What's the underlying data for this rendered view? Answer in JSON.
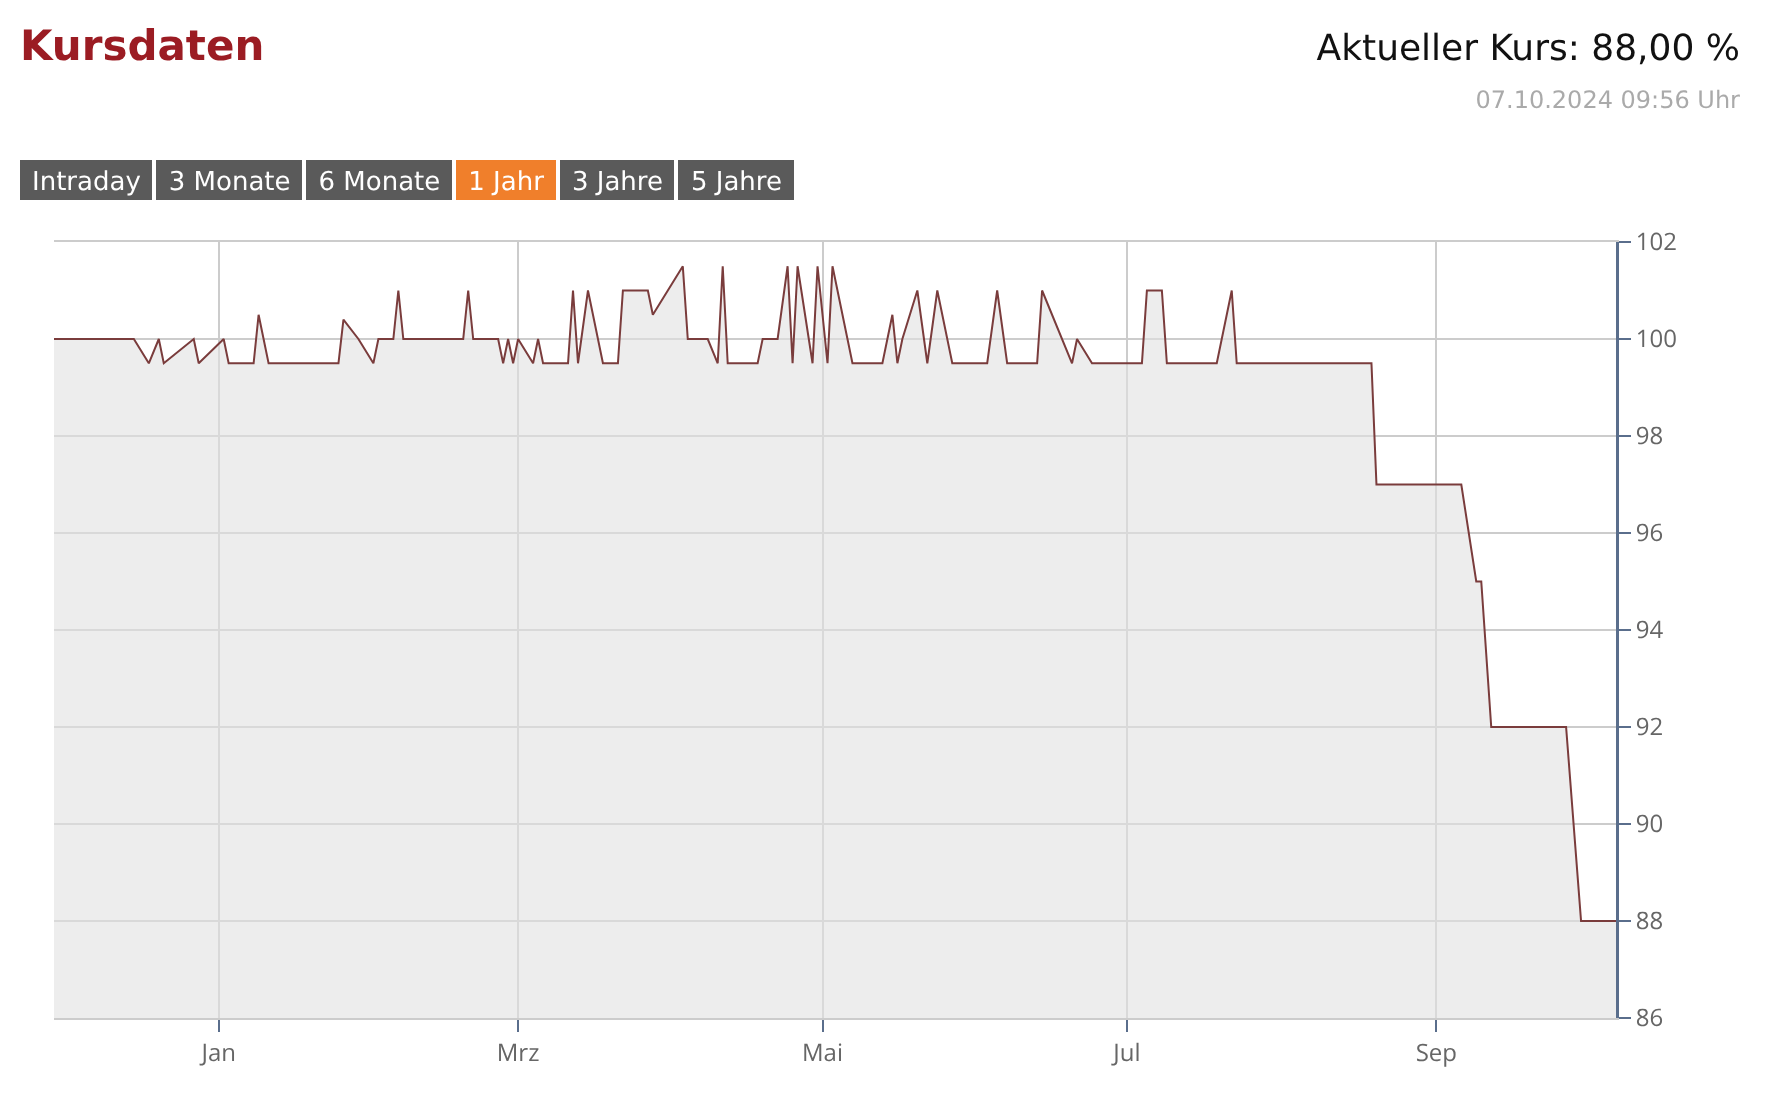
{
  "chart_data": {
    "type": "area",
    "title": "Kursdaten",
    "annotations": [
      "Aktueller Kurs: 88,00 %",
      "07.10.2024 09:56 Uhr",
      "Intraday",
      "3 Monate",
      "6 Monate",
      "1 Jahr",
      "3 Jahre",
      "5 Jahre"
    ],
    "x": [
      "2023-11-29",
      "2023-12-15",
      "2023-12-18",
      "2023-12-20",
      "2023-12-21",
      "2023-12-27",
      "2023-12-28",
      "2024-01-02",
      "2024-01-03",
      "2024-01-08",
      "2024-01-09",
      "2024-01-11",
      "2024-01-25",
      "2024-01-26",
      "2024-01-29",
      "2024-02-01",
      "2024-02-02",
      "2024-02-05",
      "2024-02-06",
      "2024-02-07",
      "2024-02-19",
      "2024-02-20",
      "2024-02-21",
      "2024-02-26",
      "2024-02-27",
      "2024-02-28",
      "2024-02-29",
      "2024-03-01",
      "2024-03-04",
      "2024-03-05",
      "2024-03-06",
      "2024-03-11",
      "2024-03-12",
      "2024-03-13",
      "2024-03-15",
      "2024-03-18",
      "2024-03-21",
      "2024-03-22",
      "2024-03-27",
      "2024-03-28",
      "2024-04-03",
      "2024-04-04",
      "2024-04-08",
      "2024-04-10",
      "2024-04-11",
      "2024-04-12",
      "2024-04-18",
      "2024-04-19",
      "2024-04-22",
      "2024-04-24",
      "2024-04-25",
      "2024-04-26",
      "2024-04-29",
      "2024-04-30",
      "2024-05-02",
      "2024-05-03",
      "2024-05-06",
      "2024-05-07",
      "2024-05-13",
      "2024-05-15",
      "2024-05-16",
      "2024-05-17",
      "2024-05-20",
      "2024-05-22",
      "2024-05-24",
      "2024-05-27",
      "2024-06-03",
      "2024-06-05",
      "2024-06-07",
      "2024-06-13",
      "2024-06-14",
      "2024-06-20",
      "2024-06-21",
      "2024-06-24",
      "2024-07-04",
      "2024-07-05",
      "2024-07-08",
      "2024-07-09",
      "2024-07-19",
      "2024-07-22",
      "2024-07-23",
      "2024-08-19",
      "2024-08-20",
      "2024-09-06",
      "2024-09-09",
      "2024-09-10",
      "2024-09-12",
      "2024-09-27",
      "2024-09-30",
      "2024-10-07"
    ],
    "series": [
      {
        "color": "#7a3c3c",
        "values": [
          100,
          100,
          99.5,
          100,
          99.5,
          100,
          99.5,
          100,
          99.5,
          99.5,
          100.5,
          99.5,
          99.5,
          100.4,
          100,
          99.5,
          100,
          100,
          101,
          100,
          100,
          101,
          100,
          100,
          99.5,
          100,
          99.5,
          100,
          99.5,
          100,
          99.5,
          99.5,
          101,
          99.5,
          101,
          99.5,
          99.5,
          101,
          101,
          100.5,
          101.5,
          100,
          100,
          99.5,
          101.5,
          99.5,
          99.5,
          100,
          100,
          101.5,
          99.5,
          101.5,
          99.5,
          101.5,
          99.5,
          101.5,
          100,
          99.5,
          99.5,
          100.5,
          99.5,
          100,
          101,
          99.5,
          101,
          99.5,
          99.5,
          101,
          99.5,
          99.5,
          101,
          99.5,
          100,
          99.5,
          99.5,
          101,
          101,
          99.5,
          99.5,
          101,
          99.5,
          99.5,
          97,
          97,
          95,
          95,
          92,
          92,
          88,
          88
        ]
      }
    ],
    "xlim": [
      "2023-11-29",
      "2024-10-07"
    ],
    "xticks": [
      {
        "value": "2024-01-01",
        "label": "Jan"
      },
      {
        "value": "2024-03-01",
        "label": "Mrz"
      },
      {
        "value": "2024-05-01",
        "label": "Mai"
      },
      {
        "value": "2024-07-01",
        "label": "Jul"
      },
      {
        "value": "2024-09-01",
        "label": "Sep"
      }
    ],
    "ylim": [
      86,
      102
    ],
    "yticks": [
      86,
      88,
      90,
      92,
      94,
      96,
      98,
      100,
      102
    ],
    "grid": true,
    "marker": "none",
    "line_style": "solid"
  }
}
